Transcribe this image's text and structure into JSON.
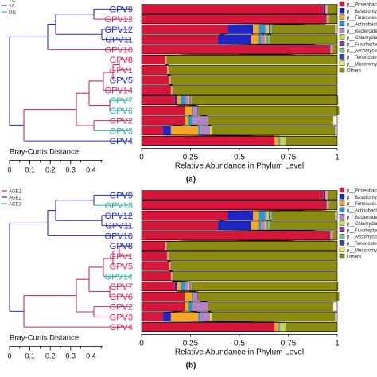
{
  "colors": {
    "Proteobacteria": "#d8163a",
    "Basidiomycota": "#1f26c8",
    "Firmicutes": "#f6a623",
    "Actinobacteria": "#1d9dd1",
    "Bacteroidetes": "#b884c6",
    "Chlamydiae": "#c8dc3c",
    "Fusobacteria": "#8a3fa6",
    "Ascomycota": "#6cc69a",
    "Tenericutes": "#2d4f9e",
    "Mucoromycota": "#e8e85a",
    "Others": "#8b8b0f",
    "group_blue": "#2a2dbf",
    "group_red": "#cc2e63",
    "group_teal": "#30b0aa"
  },
  "chart_data": [
    {
      "type": "bar",
      "orientation": "horizontal",
      "stacked": true,
      "panel_label": "(a)",
      "xlabel": "Relative Abundance in Phylum Level",
      "xlim": [
        0,
        1
      ],
      "xticks": [
        "0",
        "0.25",
        "0.5",
        "0.75",
        "1"
      ],
      "legend_position": "right",
      "legend": [
        "p__Proteobacteria",
        "p__Basidiomycota",
        "p__Firmicutes",
        "p__Actinobacteria",
        "p__Bacteroidetes",
        "p__Chlamydiae",
        "p__Fusobacteria",
        "p__Ascomycota",
        "p__Tenericutes",
        "p__Mucoromycota",
        "Others"
      ],
      "group_legend": [
        "YE",
        "YA",
        "DN"
      ],
      "dendrogram_scale_label": "Bray-Curtis Distance",
      "dendrogram_ticks": [
        "0",
        "0.1",
        "0.2",
        "0.3",
        "0.4"
      ],
      "categories": [
        "GPV9",
        "GPV13",
        "GPV12",
        "GPV11",
        "GPV10",
        "GPV8",
        "GPV1",
        "GPV5",
        "GPV14",
        "GPV7",
        "GPV6",
        "GPV2",
        "GPV3",
        "GPV4"
      ],
      "label_groups": [
        "blue",
        "red",
        "blue",
        "blue",
        "red",
        "red",
        "red",
        "blue",
        "red",
        "teal",
        "teal",
        "red",
        "teal",
        "blue"
      ],
      "series": [
        {
          "name": "p__Proteobacteria",
          "values": [
            0.93,
            0.94,
            0.44,
            0.39,
            0.96,
            0.12,
            0.13,
            0.14,
            0.15,
            0.17,
            0.22,
            0.22,
            0.11,
            0.68
          ]
        },
        {
          "name": "p__Basidiomycota",
          "values": [
            0.01,
            0.005,
            0.13,
            0.17,
            0.005,
            0.0,
            0.0,
            0.0,
            0.0,
            0.01,
            0.0,
            0.0,
            0.04,
            0.0
          ]
        },
        {
          "name": "p__Firmicutes",
          "values": [
            0.01,
            0.01,
            0.03,
            0.04,
            0.01,
            0.005,
            0.005,
            0.005,
            0.005,
            0.02,
            0.04,
            0.02,
            0.14,
            0.02
          ]
        },
        {
          "name": "p__Actinobacteria",
          "values": [
            0.0,
            0.0,
            0.03,
            0.01,
            0.0,
            0.0,
            0.0,
            0.0,
            0.0,
            0.02,
            0.005,
            0.02,
            0.01,
            0.005
          ]
        },
        {
          "name": "p__Bacteroidetes",
          "values": [
            0.005,
            0.005,
            0.01,
            0.02,
            0.005,
            0.005,
            0.005,
            0.005,
            0.005,
            0.02,
            0.02,
            0.08,
            0.05,
            0.005
          ]
        },
        {
          "name": "p__Chlamydiae",
          "values": [
            0.0,
            0.0,
            0.01,
            0.01,
            0.0,
            0.0,
            0.0,
            0.0,
            0.0,
            0.005,
            0.0,
            0.0,
            0.01,
            0.02
          ]
        },
        {
          "name": "p__Fusobacteria",
          "values": [
            0.0,
            0.0,
            0.005,
            0.005,
            0.0,
            0.0,
            0.0,
            0.0,
            0.0,
            0.005,
            0.005,
            0.0,
            0.0,
            0.0
          ]
        },
        {
          "name": "p__Ascomycota",
          "values": [
            0.0,
            0.0,
            0.01,
            0.01,
            0.0,
            0.0,
            0.0,
            0.0,
            0.0,
            0.005,
            0.0,
            0.0,
            0.0,
            0.005
          ]
        },
        {
          "name": "p__Tenericutes",
          "values": [
            0.0,
            0.0,
            0.0,
            0.0,
            0.0,
            0.0,
            0.0,
            0.0,
            0.0,
            0.0,
            0.0,
            0.0,
            0.0,
            0.0
          ]
        },
        {
          "name": "p__Mucoromycota",
          "values": [
            0.0,
            0.0,
            0.0,
            0.0,
            0.0,
            0.0,
            0.0,
            0.0,
            0.0,
            0.0,
            0.0,
            0.0,
            0.0,
            0.005
          ]
        },
        {
          "name": "Others",
          "values": [
            0.045,
            0.04,
            0.325,
            0.345,
            0.02,
            0.87,
            0.86,
            0.85,
            0.84,
            0.75,
            0.72,
            0.64,
            0.63,
            0.26
          ]
        }
      ]
    },
    {
      "type": "bar",
      "orientation": "horizontal",
      "stacked": true,
      "panel_label": "(b)",
      "xlabel": "Relative Abundance in Phylum Level",
      "xlim": [
        0,
        1
      ],
      "xticks": [
        "0",
        "0.25",
        "0.5",
        "0.75",
        "1"
      ],
      "legend_position": "right",
      "legend": [
        "p__Proteobacteria",
        "p__Basidiomycota",
        "p__Firmicutes",
        "p__Actinobacteria",
        "p__Bacteroidetes",
        "p__Chlamydiae",
        "p__Fusobacteria",
        "p__Ascomycota",
        "p__Tenericutes",
        "p__Mucoromycota",
        "Others"
      ],
      "group_legend": [
        "AGE1",
        "AGE2",
        "AGE3"
      ],
      "dendrogram_scale_label": "Bray-Curtis Distance",
      "dendrogram_ticks": [
        "0",
        "0.1",
        "0.2",
        "0.3",
        "0.4"
      ],
      "categories": [
        "GPV9",
        "GPV13",
        "GPV12",
        "GPV11",
        "GPV10",
        "GPV8",
        "GPV1",
        "GPV5",
        "GPV14",
        "GPV7",
        "GPV6",
        "GPV2",
        "GPV3",
        "GPV4"
      ],
      "label_groups": [
        "blue",
        "teal",
        "blue",
        "blue",
        "blue",
        "blue",
        "red",
        "red",
        "teal",
        "red",
        "red",
        "red",
        "red",
        "red"
      ],
      "series": [
        {
          "name": "p__Proteobacteria",
          "values": [
            0.93,
            0.94,
            0.44,
            0.39,
            0.96,
            0.12,
            0.13,
            0.14,
            0.15,
            0.17,
            0.22,
            0.22,
            0.11,
            0.68
          ]
        },
        {
          "name": "p__Basidiomycota",
          "values": [
            0.01,
            0.005,
            0.13,
            0.17,
            0.005,
            0.0,
            0.0,
            0.0,
            0.0,
            0.01,
            0.0,
            0.0,
            0.04,
            0.0
          ]
        },
        {
          "name": "p__Firmicutes",
          "values": [
            0.01,
            0.01,
            0.03,
            0.04,
            0.01,
            0.005,
            0.005,
            0.005,
            0.005,
            0.02,
            0.04,
            0.02,
            0.14,
            0.02
          ]
        },
        {
          "name": "p__Actinobacteria",
          "values": [
            0.0,
            0.0,
            0.03,
            0.01,
            0.0,
            0.0,
            0.0,
            0.0,
            0.0,
            0.02,
            0.005,
            0.02,
            0.01,
            0.005
          ]
        },
        {
          "name": "p__Bacteroidetes",
          "values": [
            0.005,
            0.005,
            0.01,
            0.02,
            0.005,
            0.005,
            0.005,
            0.005,
            0.005,
            0.02,
            0.02,
            0.08,
            0.05,
            0.005
          ]
        },
        {
          "name": "p__Chlamydiae",
          "values": [
            0.0,
            0.0,
            0.01,
            0.01,
            0.0,
            0.0,
            0.0,
            0.0,
            0.0,
            0.005,
            0.0,
            0.0,
            0.01,
            0.02
          ]
        },
        {
          "name": "p__Fusobacteria",
          "values": [
            0.0,
            0.0,
            0.005,
            0.005,
            0.0,
            0.0,
            0.0,
            0.0,
            0.0,
            0.005,
            0.005,
            0.0,
            0.0,
            0.0
          ]
        },
        {
          "name": "p__Ascomycota",
          "values": [
            0.0,
            0.0,
            0.01,
            0.01,
            0.0,
            0.0,
            0.0,
            0.0,
            0.0,
            0.005,
            0.0,
            0.0,
            0.0,
            0.005
          ]
        },
        {
          "name": "p__Tenericutes",
          "values": [
            0.0,
            0.0,
            0.0,
            0.0,
            0.0,
            0.0,
            0.0,
            0.0,
            0.0,
            0.0,
            0.0,
            0.0,
            0.0,
            0.0
          ]
        },
        {
          "name": "p__Mucoromycota",
          "values": [
            0.0,
            0.0,
            0.0,
            0.0,
            0.0,
            0.0,
            0.0,
            0.0,
            0.0,
            0.0,
            0.0,
            0.0,
            0.0,
            0.005
          ]
        },
        {
          "name": "Others",
          "values": [
            0.045,
            0.04,
            0.325,
            0.345,
            0.02,
            0.87,
            0.86,
            0.85,
            0.84,
            0.75,
            0.72,
            0.64,
            0.63,
            0.26
          ]
        }
      ]
    }
  ]
}
